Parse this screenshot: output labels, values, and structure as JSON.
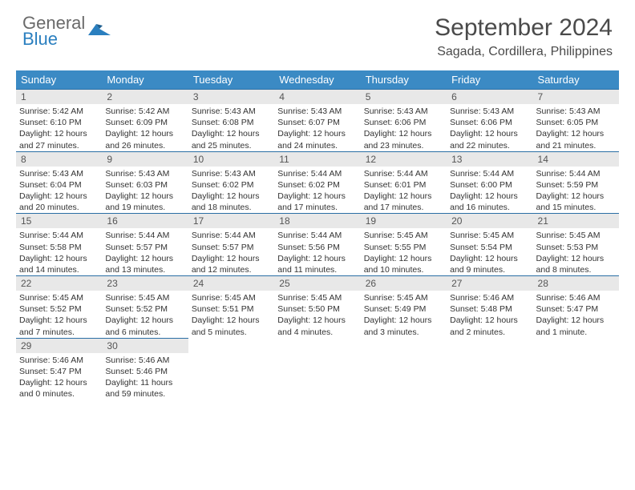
{
  "brand": {
    "line1": "General",
    "line2": "Blue"
  },
  "title": "September 2024",
  "location": "Sagada, Cordillera, Philippines",
  "colors": {
    "header_bg": "#3b8ac4",
    "header_text": "#ffffff",
    "daynum_bg": "#e8e8e8",
    "daynum_border": "#2a6fa5",
    "brand_gray": "#6a6a6a",
    "brand_blue": "#2a7fbf",
    "title_color": "#4a4a4a",
    "body_text": "#333333"
  },
  "day_headers": [
    "Sunday",
    "Monday",
    "Tuesday",
    "Wednesday",
    "Thursday",
    "Friday",
    "Saturday"
  ],
  "weeks": [
    [
      {
        "n": "1",
        "sr": "Sunrise: 5:42 AM",
        "ss": "Sunset: 6:10 PM",
        "d1": "Daylight: 12 hours",
        "d2": "and 27 minutes."
      },
      {
        "n": "2",
        "sr": "Sunrise: 5:42 AM",
        "ss": "Sunset: 6:09 PM",
        "d1": "Daylight: 12 hours",
        "d2": "and 26 minutes."
      },
      {
        "n": "3",
        "sr": "Sunrise: 5:43 AM",
        "ss": "Sunset: 6:08 PM",
        "d1": "Daylight: 12 hours",
        "d2": "and 25 minutes."
      },
      {
        "n": "4",
        "sr": "Sunrise: 5:43 AM",
        "ss": "Sunset: 6:07 PM",
        "d1": "Daylight: 12 hours",
        "d2": "and 24 minutes."
      },
      {
        "n": "5",
        "sr": "Sunrise: 5:43 AM",
        "ss": "Sunset: 6:06 PM",
        "d1": "Daylight: 12 hours",
        "d2": "and 23 minutes."
      },
      {
        "n": "6",
        "sr": "Sunrise: 5:43 AM",
        "ss": "Sunset: 6:06 PM",
        "d1": "Daylight: 12 hours",
        "d2": "and 22 minutes."
      },
      {
        "n": "7",
        "sr": "Sunrise: 5:43 AM",
        "ss": "Sunset: 6:05 PM",
        "d1": "Daylight: 12 hours",
        "d2": "and 21 minutes."
      }
    ],
    [
      {
        "n": "8",
        "sr": "Sunrise: 5:43 AM",
        "ss": "Sunset: 6:04 PM",
        "d1": "Daylight: 12 hours",
        "d2": "and 20 minutes."
      },
      {
        "n": "9",
        "sr": "Sunrise: 5:43 AM",
        "ss": "Sunset: 6:03 PM",
        "d1": "Daylight: 12 hours",
        "d2": "and 19 minutes."
      },
      {
        "n": "10",
        "sr": "Sunrise: 5:43 AM",
        "ss": "Sunset: 6:02 PM",
        "d1": "Daylight: 12 hours",
        "d2": "and 18 minutes."
      },
      {
        "n": "11",
        "sr": "Sunrise: 5:44 AM",
        "ss": "Sunset: 6:02 PM",
        "d1": "Daylight: 12 hours",
        "d2": "and 17 minutes."
      },
      {
        "n": "12",
        "sr": "Sunrise: 5:44 AM",
        "ss": "Sunset: 6:01 PM",
        "d1": "Daylight: 12 hours",
        "d2": "and 17 minutes."
      },
      {
        "n": "13",
        "sr": "Sunrise: 5:44 AM",
        "ss": "Sunset: 6:00 PM",
        "d1": "Daylight: 12 hours",
        "d2": "and 16 minutes."
      },
      {
        "n": "14",
        "sr": "Sunrise: 5:44 AM",
        "ss": "Sunset: 5:59 PM",
        "d1": "Daylight: 12 hours",
        "d2": "and 15 minutes."
      }
    ],
    [
      {
        "n": "15",
        "sr": "Sunrise: 5:44 AM",
        "ss": "Sunset: 5:58 PM",
        "d1": "Daylight: 12 hours",
        "d2": "and 14 minutes."
      },
      {
        "n": "16",
        "sr": "Sunrise: 5:44 AM",
        "ss": "Sunset: 5:57 PM",
        "d1": "Daylight: 12 hours",
        "d2": "and 13 minutes."
      },
      {
        "n": "17",
        "sr": "Sunrise: 5:44 AM",
        "ss": "Sunset: 5:57 PM",
        "d1": "Daylight: 12 hours",
        "d2": "and 12 minutes."
      },
      {
        "n": "18",
        "sr": "Sunrise: 5:44 AM",
        "ss": "Sunset: 5:56 PM",
        "d1": "Daylight: 12 hours",
        "d2": "and 11 minutes."
      },
      {
        "n": "19",
        "sr": "Sunrise: 5:45 AM",
        "ss": "Sunset: 5:55 PM",
        "d1": "Daylight: 12 hours",
        "d2": "and 10 minutes."
      },
      {
        "n": "20",
        "sr": "Sunrise: 5:45 AM",
        "ss": "Sunset: 5:54 PM",
        "d1": "Daylight: 12 hours",
        "d2": "and 9 minutes."
      },
      {
        "n": "21",
        "sr": "Sunrise: 5:45 AM",
        "ss": "Sunset: 5:53 PM",
        "d1": "Daylight: 12 hours",
        "d2": "and 8 minutes."
      }
    ],
    [
      {
        "n": "22",
        "sr": "Sunrise: 5:45 AM",
        "ss": "Sunset: 5:52 PM",
        "d1": "Daylight: 12 hours",
        "d2": "and 7 minutes."
      },
      {
        "n": "23",
        "sr": "Sunrise: 5:45 AM",
        "ss": "Sunset: 5:52 PM",
        "d1": "Daylight: 12 hours",
        "d2": "and 6 minutes."
      },
      {
        "n": "24",
        "sr": "Sunrise: 5:45 AM",
        "ss": "Sunset: 5:51 PM",
        "d1": "Daylight: 12 hours",
        "d2": "and 5 minutes."
      },
      {
        "n": "25",
        "sr": "Sunrise: 5:45 AM",
        "ss": "Sunset: 5:50 PM",
        "d1": "Daylight: 12 hours",
        "d2": "and 4 minutes."
      },
      {
        "n": "26",
        "sr": "Sunrise: 5:45 AM",
        "ss": "Sunset: 5:49 PM",
        "d1": "Daylight: 12 hours",
        "d2": "and 3 minutes."
      },
      {
        "n": "27",
        "sr": "Sunrise: 5:46 AM",
        "ss": "Sunset: 5:48 PM",
        "d1": "Daylight: 12 hours",
        "d2": "and 2 minutes."
      },
      {
        "n": "28",
        "sr": "Sunrise: 5:46 AM",
        "ss": "Sunset: 5:47 PM",
        "d1": "Daylight: 12 hours",
        "d2": "and 1 minute."
      }
    ],
    [
      {
        "n": "29",
        "sr": "Sunrise: 5:46 AM",
        "ss": "Sunset: 5:47 PM",
        "d1": "Daylight: 12 hours",
        "d2": "and 0 minutes."
      },
      {
        "n": "30",
        "sr": "Sunrise: 5:46 AM",
        "ss": "Sunset: 5:46 PM",
        "d1": "Daylight: 11 hours",
        "d2": "and 59 minutes."
      },
      null,
      null,
      null,
      null,
      null
    ]
  ]
}
